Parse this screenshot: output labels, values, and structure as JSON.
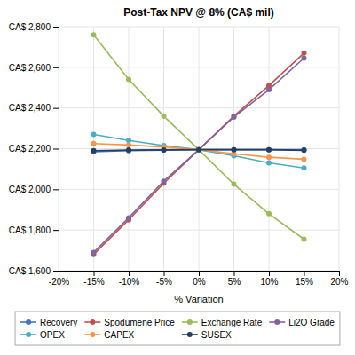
{
  "chart_data": {
    "type": "line",
    "title": "Post-Tax NPV @ 8% (CA$ mil)",
    "x_label": "% Variation",
    "x": [
      -15,
      -10,
      -5,
      0,
      5,
      10,
      15
    ],
    "series": [
      {
        "name": "Recovery",
        "color": "#4472C4",
        "values": [
          2185,
          2190,
          2193,
          2195,
          2195,
          2195,
          2195
        ]
      },
      {
        "name": "Spodumene Price",
        "color": "#C0504D",
        "values": [
          1680,
          1850,
          2030,
          2195,
          2360,
          2510,
          2670
        ]
      },
      {
        "name": "Exchange Rate",
        "color": "#9BBB59",
        "values": [
          2760,
          2540,
          2360,
          2195,
          2025,
          1880,
          1755
        ]
      },
      {
        "name": "Li2O Grade",
        "color": "#8064A2",
        "values": [
          1690,
          1860,
          2040,
          2195,
          2355,
          2490,
          2645
        ]
      },
      {
        "name": "OPEX",
        "color": "#4BACC6",
        "values": [
          2270,
          2240,
          2215,
          2195,
          2165,
          2130,
          2105
        ]
      },
      {
        "name": "CAPEX",
        "color": "#F79646",
        "values": [
          2225,
          2218,
          2208,
          2195,
          2175,
          2158,
          2148
        ]
      },
      {
        "name": "SUSEX",
        "color": "#243F60",
        "values": [
          2190,
          2193,
          2194,
          2195,
          2195,
          2195,
          2192
        ]
      }
    ],
    "xlim": [
      -20,
      20
    ],
    "ylim": [
      1600,
      2800
    ],
    "xticks": [
      {
        "value": -20,
        "label": "-20%"
      },
      {
        "value": -15,
        "label": "-15%"
      },
      {
        "value": -10,
        "label": "-10%"
      },
      {
        "value": -5,
        "label": "-5%"
      },
      {
        "value": 0,
        "label": "0%"
      },
      {
        "value": 5,
        "label": "5%"
      },
      {
        "value": 10,
        "label": "10%"
      },
      {
        "value": 15,
        "label": "15%"
      },
      {
        "value": 20,
        "label": "20%"
      }
    ],
    "yticks": [
      {
        "value": 1600,
        "label": "CA$ 1,600"
      },
      {
        "value": 1800,
        "label": "CA$ 1,800"
      },
      {
        "value": 2000,
        "label": "CA$ 2,000"
      },
      {
        "value": 2200,
        "label": "CA$ 2,200"
      },
      {
        "value": 2400,
        "label": "CA$ 2,400"
      },
      {
        "value": 2600,
        "label": "CA$ 2,600"
      },
      {
        "value": 2800,
        "label": "CA$ 2,800"
      }
    ],
    "grid": true,
    "legend": "bottom",
    "marker": "circle"
  }
}
